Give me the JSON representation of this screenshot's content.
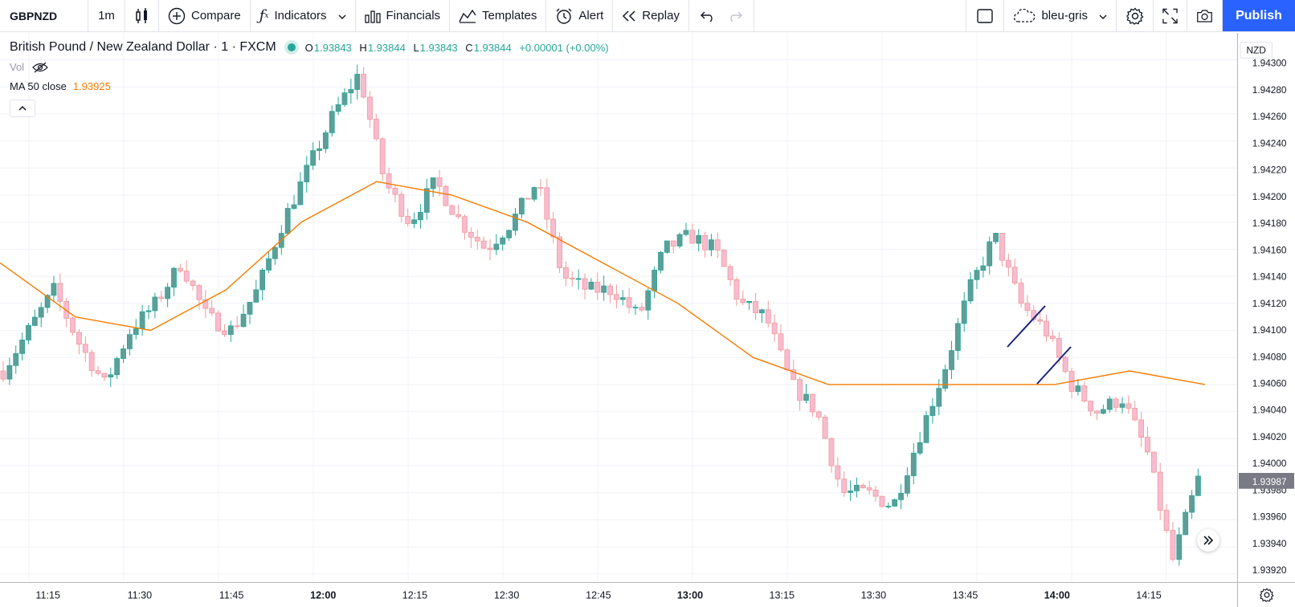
{
  "toolbar": {
    "symbol": "GBPNZD",
    "interval": "1m",
    "compare_label": "Compare",
    "indicators_label": "Indicators",
    "financials_label": "Financials",
    "templates_label": "Templates",
    "alert_label": "Alert",
    "replay_label": "Replay",
    "layout_name": "bleu-gris",
    "publish_label": "Publish"
  },
  "legend": {
    "title": "British Pound / New Zealand Dollar · 1 · FXCM",
    "open_key": "O",
    "open": "1.93843",
    "high_key": "H",
    "high": "1.93844",
    "low_key": "L",
    "low": "1.93843",
    "close_key": "C",
    "close": "1.93844",
    "change": "+0.00001 (+0.00%)",
    "vol_label": "Vol",
    "ma_label": "MA 50 close",
    "ma_value": "1.93925"
  },
  "price_axis": {
    "currency": "NZD",
    "current_price": "1.93987"
  },
  "colors": {
    "up": "#26a69a",
    "down": "#ef9a9a",
    "up_fill": "#5f9e98",
    "down_fill": "#f8bbd0",
    "ma": "#f57c00",
    "drawing": "#1a237e",
    "accent": "#2962ff"
  },
  "chart_data": {
    "type": "candlestick",
    "y_ticks": [
      "1.94300",
      "1.94280",
      "1.94260",
      "1.94240",
      "1.94220",
      "1.94200",
      "1.94180",
      "1.94160",
      "1.94140",
      "1.94120",
      "1.94100",
      "1.94080",
      "1.94060",
      "1.94040",
      "1.94020",
      "1.94000",
      "1.93980",
      "1.93960",
      "1.93940",
      "1.93920"
    ],
    "x_ticks": [
      "11:15",
      "11:30",
      "11:45",
      "12:00",
      "12:15",
      "12:30",
      "12:45",
      "13:00",
      "13:15",
      "13:30",
      "13:45",
      "14:00",
      "14:15"
    ],
    "bold_x_ticks": [
      "12:00",
      "13:00",
      "14:00"
    ],
    "ylim": [
      1.939,
      1.9431
    ],
    "series": [
      {
        "name": "GBPNZD",
        "close_path": [
          1.9407,
          1.941,
          1.9413,
          1.9409,
          1.9406,
          1.941,
          1.9412,
          1.9415,
          1.9411,
          1.941,
          1.9413,
          1.9418,
          1.9422,
          1.9426,
          1.9429,
          1.9421,
          1.9418,
          1.9421,
          1.9418,
          1.9416,
          1.9418,
          1.9421,
          1.9414,
          1.9413,
          1.9413,
          1.9411,
          1.9416,
          1.9417,
          1.9416,
          1.9412,
          1.9411,
          1.9406,
          1.9404,
          1.9398,
          1.9398,
          1.9397,
          1.9402,
          1.9407,
          1.9413,
          1.9417,
          1.9412,
          1.941,
          1.9406,
          1.9404,
          1.9405,
          1.9401,
          1.9393,
          1.9399
        ]
      },
      {
        "name": "MA 50 close",
        "values": [
          1.9415,
          1.9411,
          1.941,
          1.9413,
          1.9418,
          1.9421,
          1.942,
          1.9418,
          1.9415,
          1.9412,
          1.9408,
          1.9406,
          1.9406,
          1.9406,
          1.9406,
          1.9407,
          1.9406
        ]
      }
    ]
  }
}
